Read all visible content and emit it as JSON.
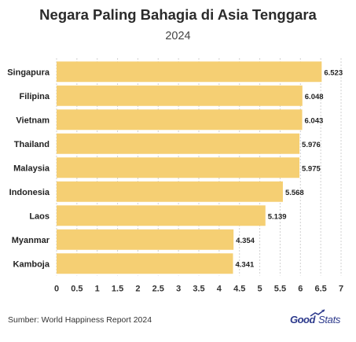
{
  "chart_data": {
    "type": "bar",
    "orientation": "horizontal",
    "title": "Negara Paling Bahagia di Asia Tenggara",
    "subtitle": "2024",
    "categories": [
      "Singapura",
      "Filipina",
      "Vietnam",
      "Thailand",
      "Malaysia",
      "Indonesia",
      "Laos",
      "Myanmar",
      "Kamboja"
    ],
    "values": [
      6.523,
      6.048,
      6.043,
      5.976,
      5.975,
      5.568,
      5.139,
      4.354,
      4.341
    ],
    "value_labels": [
      "6.523",
      "6.048",
      "6.043",
      "5.976",
      "5.975",
      "5.568",
      "5.139",
      "4.354",
      "4.341"
    ],
    "xticks": [
      "0",
      "0.5",
      "1",
      "1.5",
      "2",
      "2.5",
      "3",
      "3.5",
      "4",
      "4.5",
      "5",
      "5.5",
      "6",
      "6.5",
      "7"
    ],
    "xlim": [
      0,
      7
    ],
    "bar_color": "#F5CF73",
    "grid": true
  },
  "footer": {
    "source": "Sumber: World Happiness Report 2024",
    "logo_good": "Good",
    "logo_stats": "Stats",
    "logo_color": "#2d3a8c"
  }
}
